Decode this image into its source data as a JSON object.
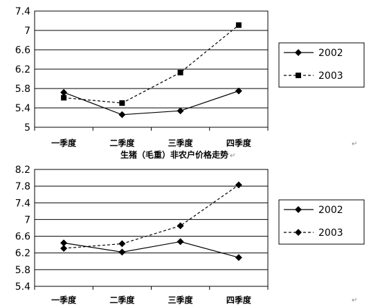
{
  "chart_data": [
    {
      "type": "line",
      "title": "",
      "categories": [
        "一季度",
        "二季度",
        "三季度",
        "四季度"
      ],
      "ylim": [
        5,
        7.4
      ],
      "yticks": [
        "5",
        "5.4",
        "5.8",
        "6.2",
        "6.6",
        "7",
        "7.4"
      ],
      "grid": true,
      "legend_position": "right",
      "series": [
        {
          "name": "2002",
          "values": [
            5.72,
            5.26,
            5.34,
            5.75
          ],
          "line": "solid",
          "marker": "diamond"
        },
        {
          "name": "2003",
          "values": [
            5.61,
            5.5,
            6.13,
            7.11
          ],
          "line": "dashed",
          "marker": "square"
        }
      ]
    },
    {
      "type": "line",
      "title": "生猪（毛重）非农户价格走势",
      "categories": [
        "一季度",
        "二季度",
        "三季度",
        "四季度"
      ],
      "ylim": [
        5.4,
        8.2
      ],
      "yticks": [
        "5.4",
        "5.8",
        "6.2",
        "6.6",
        "7",
        "7.4",
        "7.8",
        "8.2"
      ],
      "grid": true,
      "legend_position": "right",
      "series": [
        {
          "name": "2002",
          "values": [
            6.44,
            6.22,
            6.47,
            6.09
          ],
          "line": "solid",
          "marker": "diamond"
        },
        {
          "name": "2003",
          "values": [
            6.31,
            6.42,
            6.85,
            7.83
          ],
          "line": "dashed",
          "marker": "diamond"
        }
      ]
    }
  ],
  "marks": {
    "paragraph_mark": "↵"
  }
}
